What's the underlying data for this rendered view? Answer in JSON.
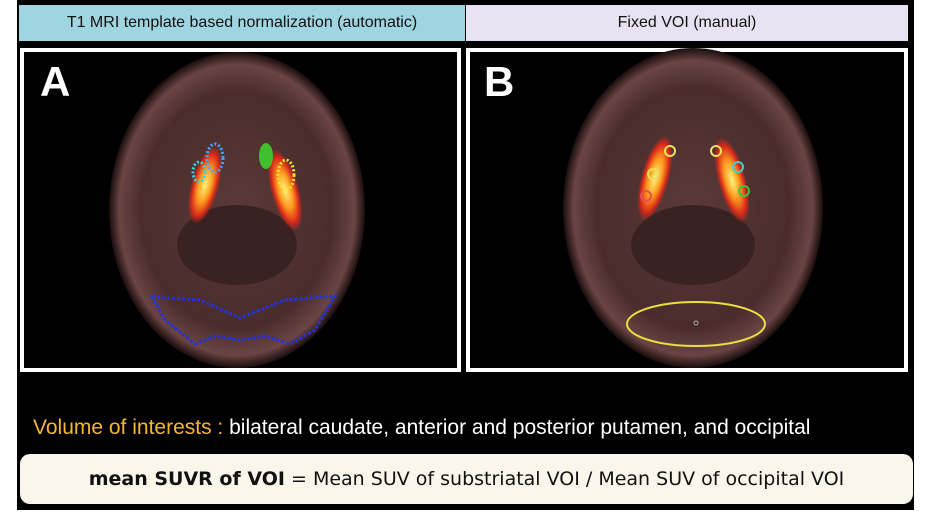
{
  "header": {
    "left": "T1 MRI template based normalization (automatic)",
    "right": "Fixed VOI (manual)"
  },
  "panels": [
    {
      "label": "A"
    },
    {
      "label": "B"
    }
  ],
  "voi": {
    "label": "Volume of interests :",
    "text": "bilateral caudate, anterior and posterior putamen, and occipital"
  },
  "formula": {
    "term": "mean SUVR of VOI",
    "definition": "= Mean SUV of substriatal VOI / Mean SUV of occipital VOI"
  }
}
